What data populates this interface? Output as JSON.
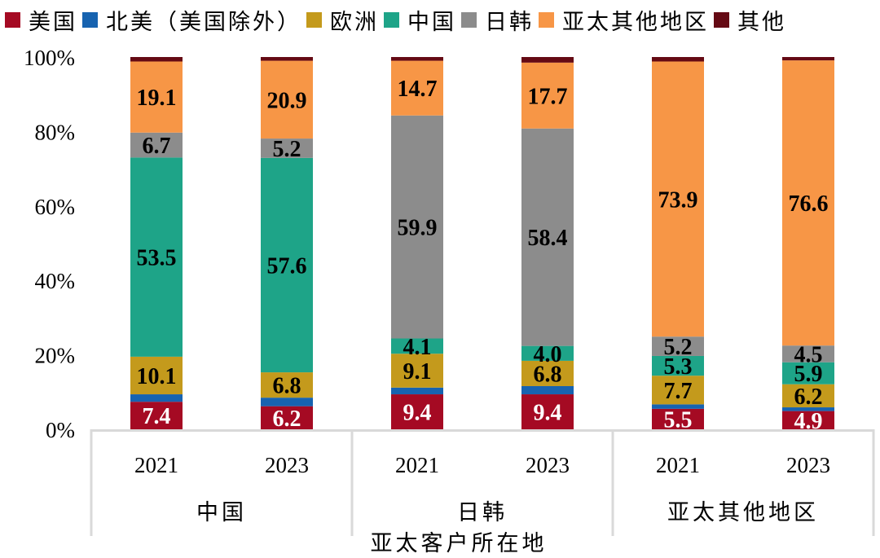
{
  "chart_data": {
    "type": "bar",
    "stacked": true,
    "percent": true,
    "title": "",
    "xlabel": "亚太客户所在地",
    "ylabel": "",
    "ylim": [
      0,
      100
    ],
    "yticks": [
      "0%",
      "20%",
      "40%",
      "60%",
      "80%",
      "100%"
    ],
    "legend_position": "top",
    "groups": [
      "中国",
      "日韩",
      "亚太其他地区"
    ],
    "categories": [
      "2021",
      "2023",
      "2021",
      "2023",
      "2021",
      "2023"
    ],
    "category_groups": [
      0,
      0,
      1,
      1,
      2,
      2
    ],
    "series": [
      {
        "name": "美国",
        "color": "#A50A23",
        "label_color": "#ffffff",
        "values": [
          7.4,
          6.2,
          9.4,
          9.4,
          5.5,
          4.9
        ],
        "labels": [
          "7.4",
          "6.2",
          "9.4",
          "9.4",
          "5.5",
          "4.9"
        ]
      },
      {
        "name": "北美（美国除外）",
        "color": "#1763B0",
        "label_color": "#000000",
        "values": [
          2.0,
          2.3,
          1.8,
          2.2,
          1.2,
          1.0
        ],
        "labels": [
          "",
          "",
          "",
          "",
          "",
          ""
        ]
      },
      {
        "name": "欧洲",
        "color": "#C49A1C",
        "label_color": "#000000",
        "values": [
          10.1,
          6.8,
          9.1,
          6.8,
          7.7,
          6.2
        ],
        "labels": [
          "10.1",
          "6.8",
          "9.1",
          "6.8",
          "7.7",
          "6.2"
        ]
      },
      {
        "name": "中国",
        "color": "#1EA488",
        "label_color": "#000000",
        "values": [
          53.5,
          57.6,
          4.1,
          4.0,
          5.3,
          5.9
        ],
        "labels": [
          "53.5",
          "57.6",
          "4.1",
          "4.0",
          "5.3",
          "5.9"
        ]
      },
      {
        "name": "日韩",
        "color": "#8C8C8C",
        "label_color": "#000000",
        "values": [
          6.7,
          5.2,
          59.9,
          58.4,
          5.2,
          4.5
        ],
        "labels": [
          "6.7",
          "5.2",
          "59.9",
          "58.4",
          "5.2",
          "4.5"
        ]
      },
      {
        "name": "亚太其他地区",
        "color": "#F79646",
        "label_color": "#000000",
        "values": [
          19.1,
          20.9,
          14.7,
          17.7,
          73.9,
          76.6
        ],
        "labels": [
          "19.1",
          "20.9",
          "14.7",
          "17.7",
          "73.9",
          "76.6"
        ]
      },
      {
        "name": "其他",
        "color": "#650A14",
        "label_color": "#ffffff",
        "values": [
          1.2,
          1.0,
          1.0,
          1.5,
          1.2,
          0.9
        ],
        "labels": [
          "",
          "",
          "",
          "",
          "",
          ""
        ]
      }
    ]
  }
}
